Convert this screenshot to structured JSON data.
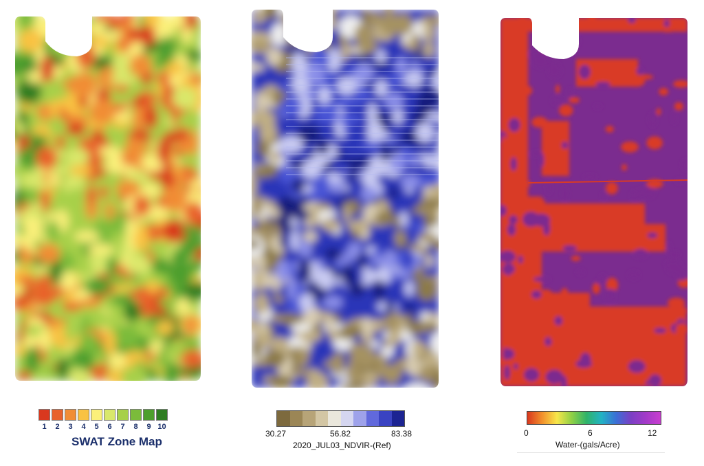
{
  "maps": [
    {
      "name": "SWAT Zone Map",
      "palette": [
        "#d9381e",
        "#e8622c",
        "#f18d36",
        "#f9c243",
        "#fbf07a",
        "#d9e86b",
        "#a7d04a",
        "#7bbb3b",
        "#4d9f2d",
        "#2e7d22"
      ]
    },
    {
      "name": "2020_JUL03_NDVIR-(Ref)",
      "palette": [
        "#8c7a4a",
        "#a59262",
        "#bfae84",
        "#d8ccb0",
        "#eeeeee",
        "#c9cbf2",
        "#8b8fe8",
        "#4a55d6",
        "#2a34b8",
        "#161d7c"
      ]
    },
    {
      "name": "Water-(gals/Acre)",
      "palette": [
        "#d93a25",
        "#7b2c8f"
      ]
    }
  ],
  "legend_swat": {
    "colors": [
      "#d9381e",
      "#e8622c",
      "#f18d36",
      "#f9c243",
      "#fbf07a",
      "#d9e86b",
      "#a7d04a",
      "#7bbb3b",
      "#4d9f2d",
      "#2e7d22"
    ],
    "labels": [
      "1",
      "2",
      "3",
      "4",
      "5",
      "6",
      "7",
      "8",
      "9",
      "10"
    ],
    "title": "SWAT Zone Map"
  },
  "legend_ndvi": {
    "colors": [
      "#7d6a3e",
      "#9b8656",
      "#b7a478",
      "#d3c6a4",
      "#eae7dc",
      "#d5d6f0",
      "#9ea2ea",
      "#6169dc",
      "#3a43c2",
      "#1c2492"
    ],
    "min_label": "30.27",
    "mid_label": "56.82",
    "max_label": "83.38",
    "title": "2020_JUL03_NDVIR-(Ref)"
  },
  "legend_water": {
    "gradient": [
      "#d9381e",
      "#f2902c",
      "#f7e64a",
      "#8fd046",
      "#2fb36a",
      "#22b3c4",
      "#3b6fd6",
      "#7b3fc4",
      "#a33ac8",
      "#c93ed0"
    ],
    "tick_labels": [
      "0",
      "6",
      "12"
    ],
    "title": "Water-(gals/Acre)"
  }
}
